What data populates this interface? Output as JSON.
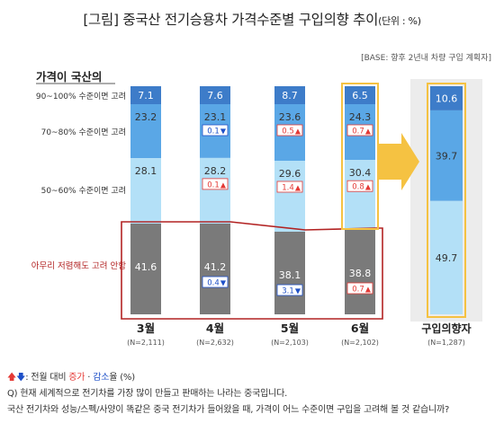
{
  "title": {
    "main": "[그림] 중국산 전기승용차 가격수준별 구입의향 추이",
    "unit": "(단위 : %)"
  },
  "base_note": "[BASE: 향후 2년내 차량 구입 계획자]",
  "colors": {
    "tier_100": "#3d7cc9",
    "tier_80": "#5aa7e6",
    "tier_60": "#b3e0f7",
    "tier_low": "#7a7a7a",
    "highlight_border": "#f5c242",
    "highlight_bg": "#ececec",
    "red_box": "#b22222",
    "arrow": "#f5c242",
    "change_up": "#e53935",
    "change_down": "#1e50c8"
  },
  "chart_data": {
    "type": "bar",
    "stacked": true,
    "row_header": "가격이 국산의",
    "row_labels": [
      "90~100% 수준이면 고려",
      "70~80% 수준이면 고려",
      "50~60% 수준이면 고려",
      "아무리 저렴해도 고려 안함"
    ],
    "categories": [
      "3월",
      "4월",
      "5월",
      "6월",
      "구입의향자"
    ],
    "sample_sizes": [
      "(N=2,111)",
      "(N=2,632)",
      "(N=2,103)",
      "(N=2,102)",
      "(N=1,287)"
    ],
    "series": [
      {
        "name": "90~100% 수준이면 고려",
        "values": [
          7.1,
          7.6,
          8.7,
          6.5,
          10.6
        ],
        "changes": [
          null,
          null,
          null,
          null,
          null
        ]
      },
      {
        "name": "70~80% 수준이면 고려",
        "values": [
          23.2,
          23.1,
          23.6,
          24.3,
          39.7
        ],
        "changes": [
          null,
          "0.1",
          "0.5",
          "0.7",
          null
        ],
        "directions": [
          null,
          "down",
          "up",
          "up",
          null
        ]
      },
      {
        "name": "50~60% 수준이면 고려",
        "values": [
          28.1,
          28.2,
          29.6,
          30.4,
          49.7
        ],
        "changes": [
          null,
          "0.1",
          "1.4",
          "0.8",
          null
        ],
        "directions": [
          null,
          "up",
          "up",
          "up",
          null
        ]
      },
      {
        "name": "아무리 저렴해도 고려 안함",
        "values": [
          41.6,
          41.2,
          38.1,
          38.8,
          null
        ],
        "changes": [
          null,
          "0.4",
          "3.1",
          "0.7",
          null
        ],
        "directions": [
          null,
          "down",
          "down",
          "up",
          null
        ]
      }
    ]
  },
  "legend_note": {
    "prefix": ": 전월 대비 ",
    "up": "증가",
    "sep": " · ",
    "down": "감소",
    "suffix": "율 (%)"
  },
  "question": "Q) 현재 세계적으로 전기차를 가장 많이 만들고 판매하는 나라는 중국입니다.",
  "question2": "국산 전기차와 성능/스펙/사양이 똑같은 중국 전기차가 들어왔을 때, 가격이 어느 수준이면  구입을 고려해 볼 것 같습니까?"
}
